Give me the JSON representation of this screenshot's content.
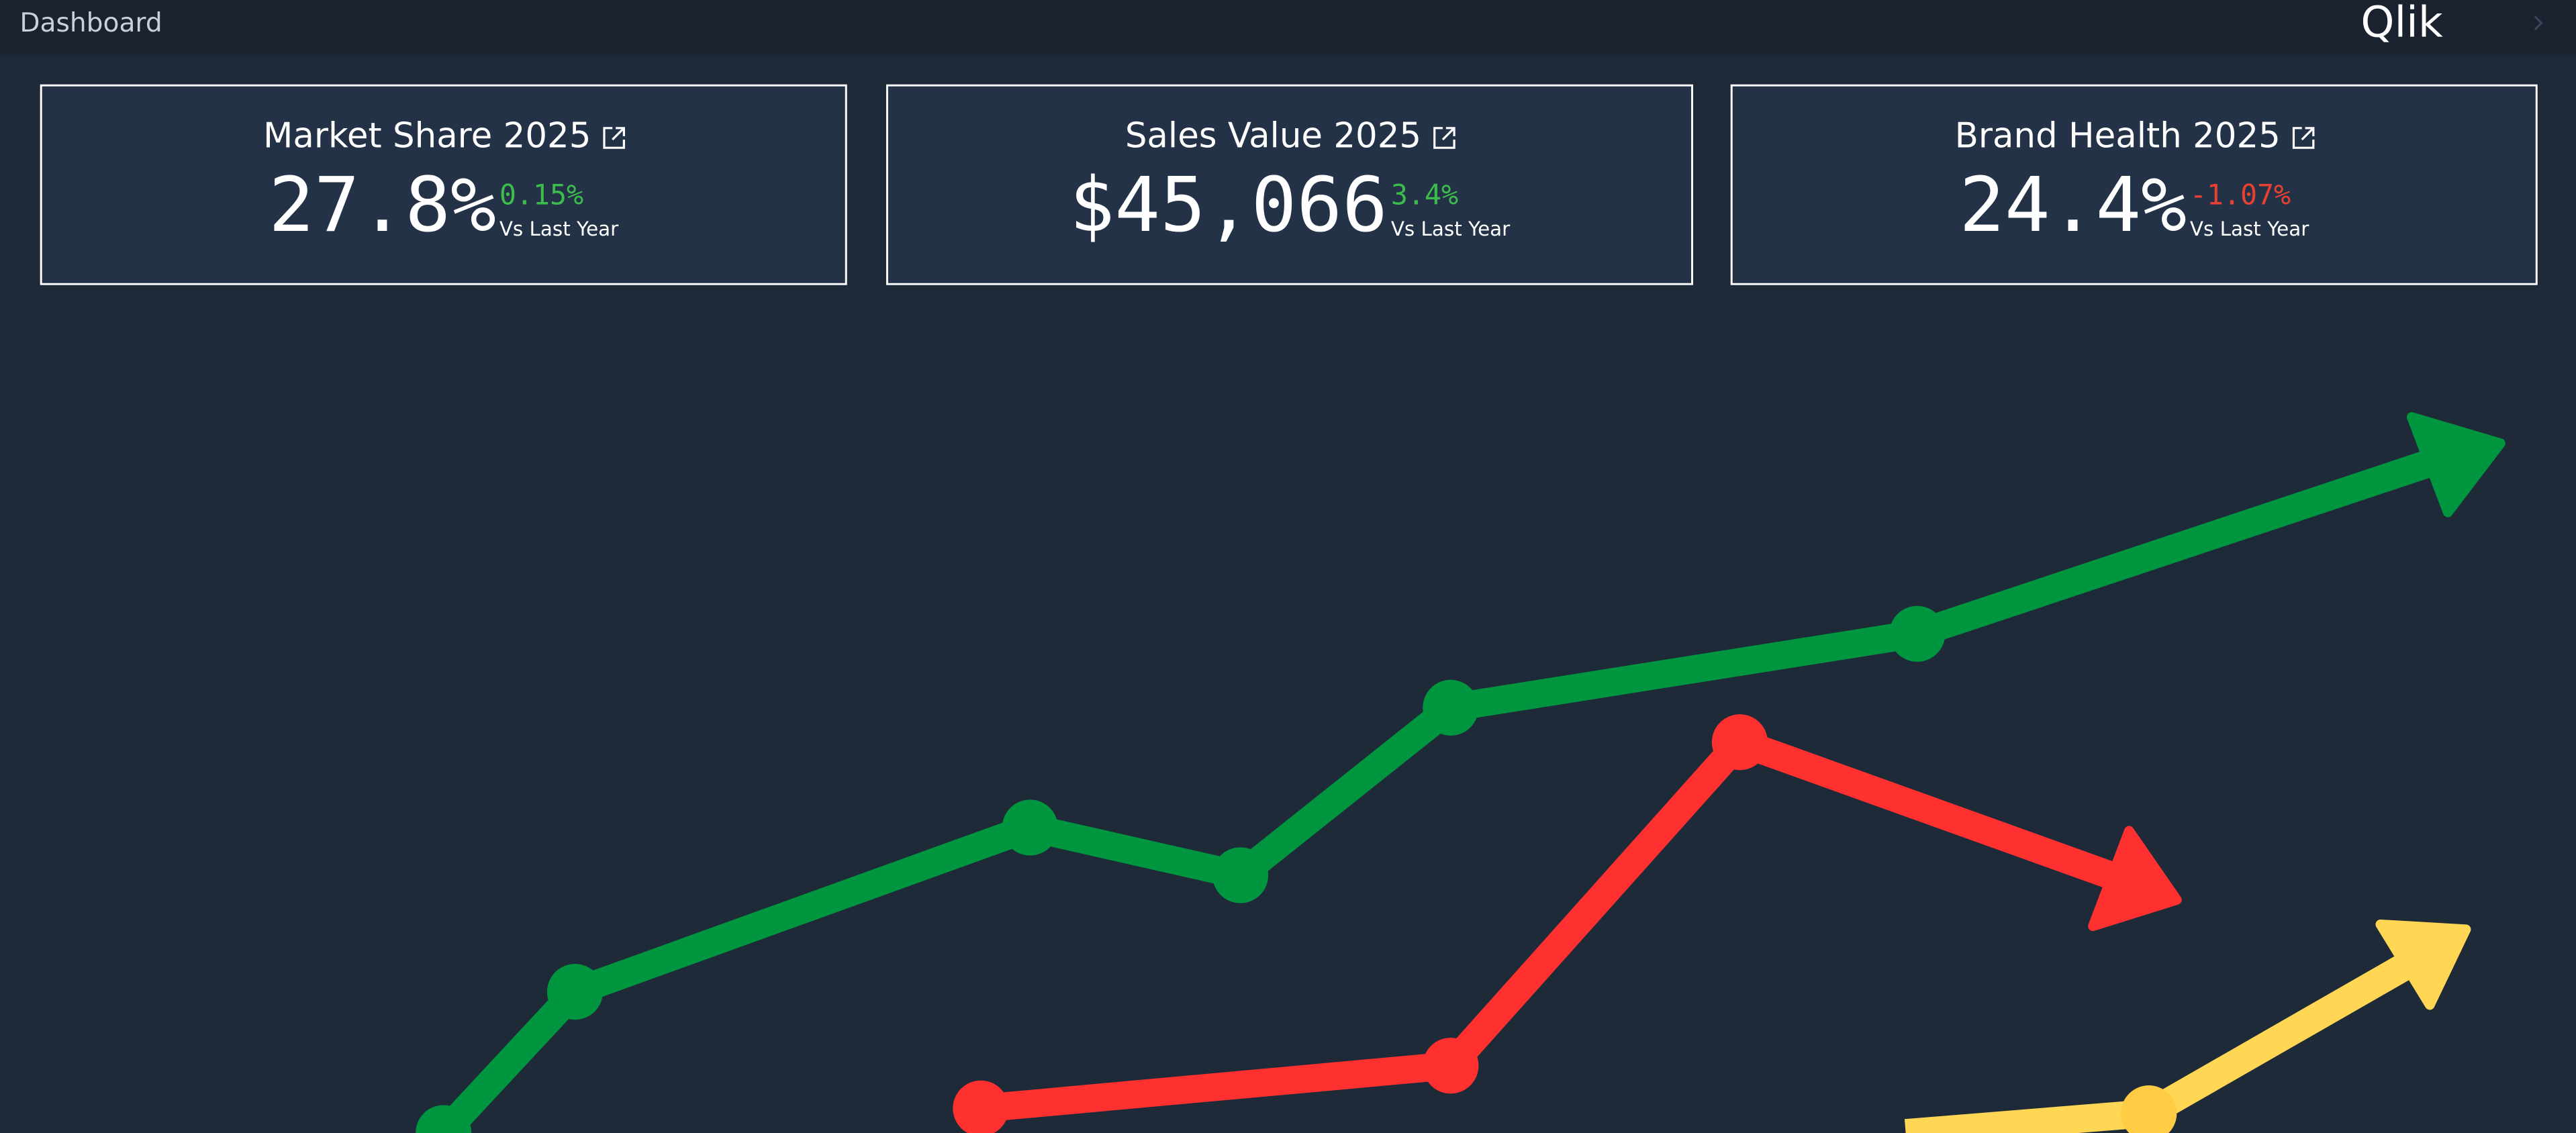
{
  "header": {
    "title": "Dashboard",
    "logo": "Qlik"
  },
  "cards": [
    {
      "title": "Market Share 2025",
      "value": "27.8%",
      "change": "0.15%",
      "comparison": "Vs Last Year",
      "color": "#3dbb4c"
    },
    {
      "title": "Sales Value 2025",
      "value": "$45,066",
      "change": "3.4%",
      "comparison": "Vs Last Year",
      "color": "#3dbb4c"
    },
    {
      "title": "Brand Health 2025",
      "value": "24.4%",
      "change": "-1.07%",
      "comparison": "Vs Last Year",
      "color": "#e8412f"
    }
  ]
}
